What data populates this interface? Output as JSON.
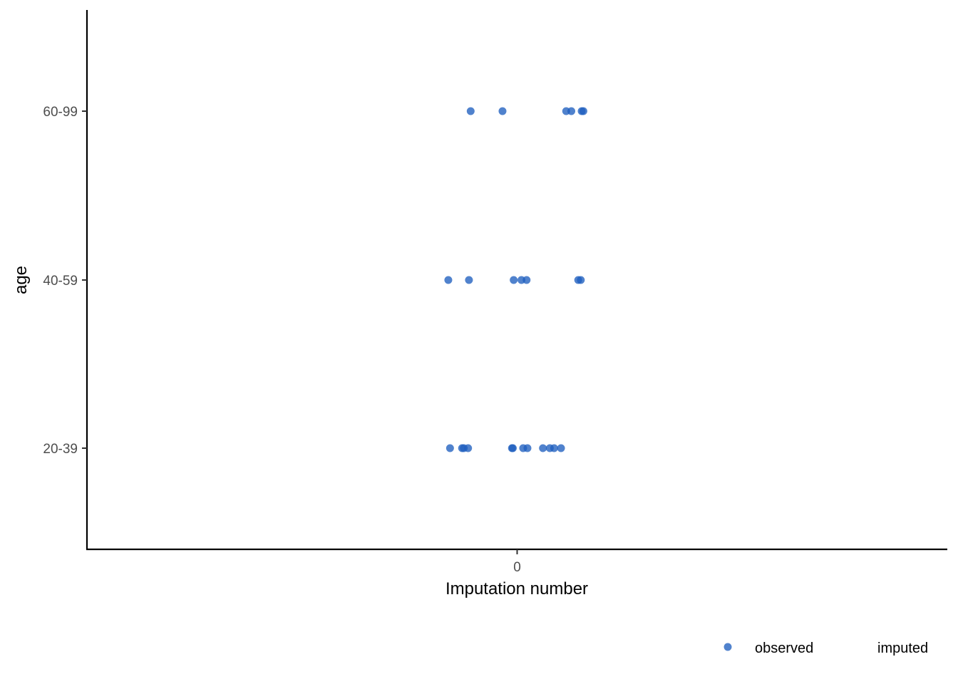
{
  "chart_data": {
    "type": "scatter",
    "title": "",
    "xlabel": "Imputation number",
    "ylabel": "age",
    "x_ticks": [
      "0"
    ],
    "y_categories": [
      "20-39",
      "40-59",
      "60-99"
    ],
    "xlim": [
      -0.5,
      0.5
    ],
    "jitter_note": "",
    "grid": false,
    "legend_position": "bottom-right",
    "series": [
      {
        "name": "observed",
        "color": "#1F5FBF",
        "points": [
          {
            "x": -0.054,
            "y": "60-99"
          },
          {
            "x": -0.017,
            "y": "60-99"
          },
          {
            "x": 0.057,
            "y": "60-99"
          },
          {
            "x": 0.063,
            "y": "60-99"
          },
          {
            "x": 0.075,
            "y": "60-99"
          },
          {
            "x": 0.077,
            "y": "60-99"
          },
          {
            "x": -0.08,
            "y": "40-59"
          },
          {
            "x": -0.056,
            "y": "40-59"
          },
          {
            "x": -0.004,
            "y": "40-59"
          },
          {
            "x": 0.005,
            "y": "40-59"
          },
          {
            "x": 0.011,
            "y": "40-59"
          },
          {
            "x": 0.071,
            "y": "40-59"
          },
          {
            "x": 0.074,
            "y": "40-59"
          },
          {
            "x": -0.078,
            "y": "20-39"
          },
          {
            "x": -0.064,
            "y": "20-39"
          },
          {
            "x": -0.062,
            "y": "20-39"
          },
          {
            "x": -0.057,
            "y": "20-39"
          },
          {
            "x": -0.006,
            "y": "20-39"
          },
          {
            "x": -0.005,
            "y": "20-39"
          },
          {
            "x": 0.007,
            "y": "20-39"
          },
          {
            "x": 0.012,
            "y": "20-39"
          },
          {
            "x": 0.03,
            "y": "20-39"
          },
          {
            "x": 0.038,
            "y": "20-39"
          },
          {
            "x": 0.043,
            "y": "20-39"
          },
          {
            "x": 0.051,
            "y": "20-39"
          }
        ]
      },
      {
        "name": "imputed",
        "color": "#B2182B",
        "points": []
      }
    ]
  }
}
